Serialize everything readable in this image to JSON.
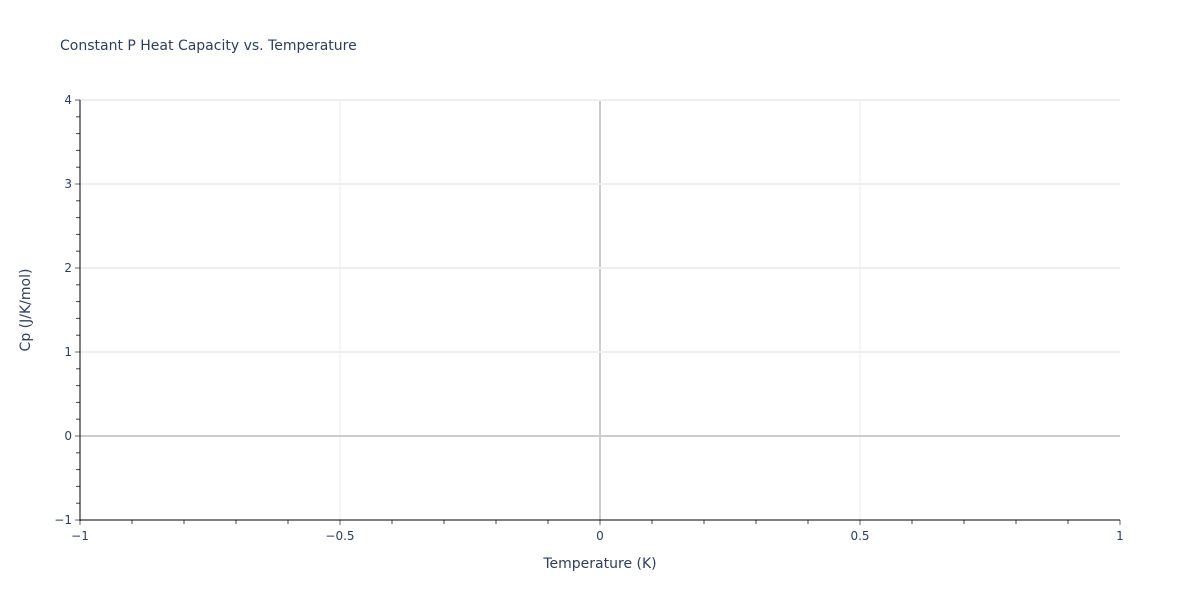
{
  "chart_data": {
    "type": "line",
    "title": "Constant P Heat Capacity vs. Temperature",
    "xlabel": "Temperature (K)",
    "ylabel": "Cp (J/K/mol)",
    "xlim": [
      -1,
      1
    ],
    "ylim": [
      -1,
      4
    ],
    "xticks": [
      -1,
      -0.5,
      0,
      0.5,
      1
    ],
    "xtick_labels": [
      "−1",
      "−0.5",
      "0",
      "0.5",
      "1"
    ],
    "yticks": [
      -1,
      0,
      1,
      2,
      3,
      4
    ],
    "ytick_labels": [
      "−1",
      "0",
      "1",
      "2",
      "3",
      "4"
    ],
    "x_minor_step": 0.1,
    "y_minor_step": 0.2,
    "grid": true,
    "series": [],
    "colors": {
      "text": "#2a3f5f",
      "grid": "#eeeeee",
      "zeroline": "#cccccc",
      "axis": "#000000"
    }
  }
}
